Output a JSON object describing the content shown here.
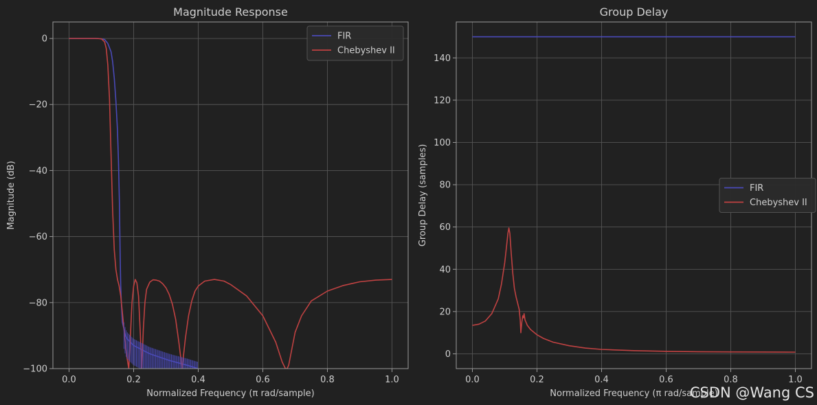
{
  "watermark": "CSDN @Wang CS",
  "colors": {
    "background": "#212121",
    "grid": "#555555",
    "spine": "#9a9a9a",
    "text": "#cfcfcf",
    "fir": "#4a4ab8",
    "cheby": "#c04242",
    "legend_bg": "#2b2b2b",
    "legend_border": "#555555"
  },
  "chart_data": [
    {
      "type": "line",
      "title": "Magnitude Response",
      "xlabel": "Normalized Frequency (π rad/sample)",
      "ylabel": "Magnitude (dB)",
      "xlim": [
        -0.05,
        1.05
      ],
      "ylim": [
        -100,
        5
      ],
      "xticks": [
        0.0,
        0.2,
        0.4,
        0.6,
        0.8,
        1.0
      ],
      "xtick_labels": [
        "0.0",
        "0.2",
        "0.4",
        "0.6",
        "0.8",
        "1.0"
      ],
      "yticks": [
        0,
        -20,
        -40,
        -60,
        -80,
        -100
      ],
      "ytick_labels": [
        "0",
        "−20",
        "−40",
        "−60",
        "−80",
        "−100"
      ],
      "grid": true,
      "legend": "top-right",
      "series": [
        {
          "name": "FIR",
          "color": "#4a4ab8",
          "x": [
            0.0,
            0.05,
            0.09,
            0.11,
            0.12,
            0.13,
            0.135,
            0.14,
            0.145,
            0.15,
            0.153,
            0.156,
            0.158,
            0.16,
            0.162,
            0.165,
            0.17,
            0.175,
            0.18,
            0.19,
            0.2,
            0.22,
            0.25,
            0.28,
            0.31,
            0.34,
            0.37,
            0.4
          ],
          "values": [
            0,
            0,
            0,
            -0.3,
            -1.5,
            -4,
            -7,
            -12,
            -19,
            -28,
            -37,
            -50,
            -65,
            -75,
            -80,
            -86,
            -88,
            -90,
            -91,
            -92,
            -93,
            -94,
            -95.5,
            -96.5,
            -97.5,
            -98.3,
            -99.1,
            -100
          ]
        },
        {
          "name": "Chebyshev II",
          "color": "#c04242",
          "x": [
            0.0,
            0.08,
            0.1,
            0.11,
            0.115,
            0.12,
            0.125,
            0.13,
            0.135,
            0.14,
            0.145,
            0.15,
            0.155,
            0.16,
            0.165,
            0.17,
            0.175,
            0.18,
            0.185,
            0.19,
            0.195,
            0.2,
            0.205,
            0.21,
            0.215,
            0.22,
            0.225,
            0.23,
            0.235,
            0.24,
            0.25,
            0.26,
            0.27,
            0.28,
            0.29,
            0.3,
            0.31,
            0.32,
            0.33,
            0.34,
            0.35,
            0.36,
            0.37,
            0.38,
            0.39,
            0.4,
            0.42,
            0.45,
            0.48,
            0.5,
            0.55,
            0.6,
            0.64,
            0.66,
            0.67,
            0.675,
            0.68,
            0.69,
            0.7,
            0.72,
            0.75,
            0.8,
            0.85,
            0.9,
            0.95,
            1.0
          ],
          "values": [
            0,
            0,
            -0.1,
            -1,
            -3,
            -8,
            -18,
            -35,
            -52,
            -64,
            -70,
            -73,
            -75,
            -78,
            -83,
            -88,
            -93,
            -97,
            -100,
            -90,
            -80,
            -75,
            -73,
            -74,
            -78,
            -88,
            -100,
            -88,
            -80,
            -76,
            -73.8,
            -73.1,
            -73.2,
            -73.5,
            -74.3,
            -75.5,
            -77.5,
            -80.5,
            -85,
            -92,
            -100,
            -91,
            -84,
            -79.5,
            -76.5,
            -75,
            -73.5,
            -73,
            -73.5,
            -74.5,
            -78,
            -84,
            -92,
            -98,
            -100,
            -100,
            -99,
            -94,
            -89,
            -84,
            -79.5,
            -76.5,
            -74.8,
            -73.7,
            -73.2,
            -73
          ]
        }
      ]
    },
    {
      "type": "line",
      "title": "Group Delay",
      "xlabel": "Normalized Frequency (π rad/sample)",
      "ylabel": "Group Delay (samples)",
      "xlim": [
        -0.05,
        1.05
      ],
      "ylim": [
        -7,
        157
      ],
      "xticks": [
        0.0,
        0.2,
        0.4,
        0.6,
        0.8,
        1.0
      ],
      "xtick_labels": [
        "0.0",
        "0.2",
        "0.4",
        "0.6",
        "0.8",
        "1.0"
      ],
      "yticks": [
        0,
        20,
        40,
        60,
        80,
        100,
        120,
        140
      ],
      "ytick_labels": [
        "0",
        "20",
        "40",
        "60",
        "80",
        "100",
        "120",
        "140"
      ],
      "grid": true,
      "legend": "center-right",
      "series": [
        {
          "name": "FIR",
          "color": "#4a4ab8",
          "x": [
            0.0,
            1.0
          ],
          "values": [
            150,
            150
          ]
        },
        {
          "name": "Chebyshev II",
          "color": "#c04242",
          "x": [
            0.0,
            0.02,
            0.04,
            0.06,
            0.08,
            0.09,
            0.1,
            0.105,
            0.11,
            0.113,
            0.116,
            0.12,
            0.125,
            0.13,
            0.135,
            0.14,
            0.145,
            0.148,
            0.15,
            0.153,
            0.156,
            0.158,
            0.16,
            0.163,
            0.166,
            0.17,
            0.18,
            0.2,
            0.22,
            0.25,
            0.3,
            0.35,
            0.4,
            0.5,
            0.6,
            0.7,
            0.8,
            0.9,
            1.0
          ],
          "values": [
            13.5,
            14,
            15.5,
            19,
            26,
            33,
            43,
            50,
            57,
            59.5,
            57,
            48,
            38,
            31,
            27,
            24,
            21,
            16,
            10,
            15,
            18,
            17,
            19,
            16,
            15,
            13.5,
            11.5,
            9,
            7.3,
            5.5,
            3.8,
            2.7,
            2.1,
            1.5,
            1.2,
            1.0,
            0.9,
            0.85,
            0.8
          ]
        }
      ]
    }
  ]
}
